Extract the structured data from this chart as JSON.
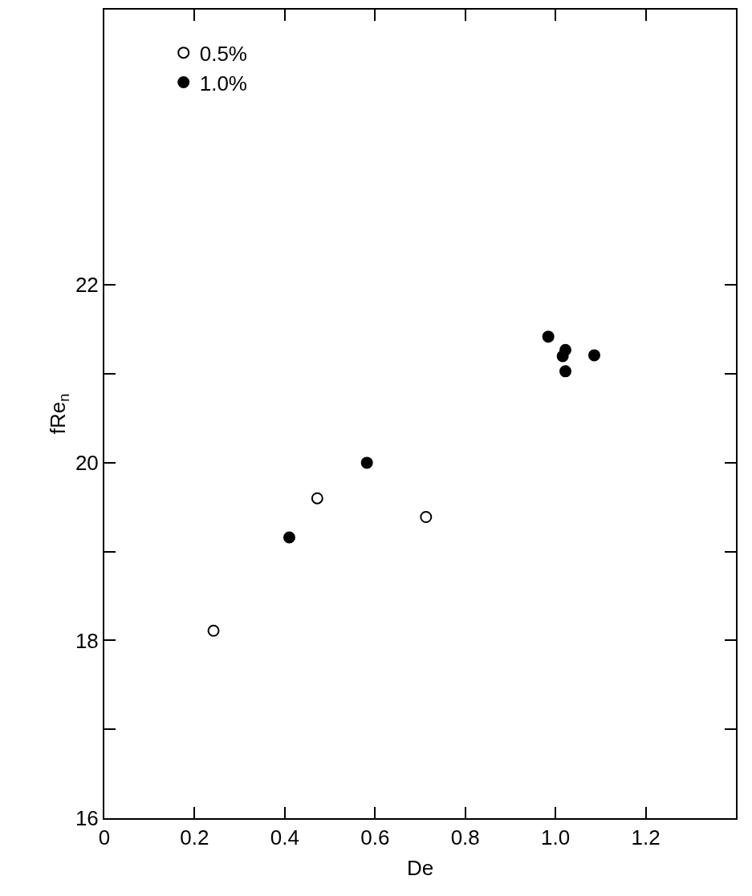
{
  "chart_data": {
    "type": "scatter",
    "xlabel": "De",
    "ylabel": "fRe$_{n}$",
    "xlim": [
      0,
      1.4
    ],
    "ylim": [
      16,
      25.1
    ],
    "xticks": [
      0,
      0.2,
      0.4,
      0.6,
      0.8,
      {
        "value": 1,
        "label": "1.0"
      },
      1.2
    ],
    "yticks": [
      16,
      {
        "value": 17,
        "label": null
      },
      18,
      {
        "value": 19,
        "label": null
      },
      20,
      {
        "value": 21,
        "label": null
      },
      22
    ],
    "legend": "top left",
    "marker": "circle",
    "series": [
      {
        "name": "0.5%",
        "color": "#000000",
        "x": [
          0.242,
          0.472,
          0.713
        ],
        "values": [
          18.11,
          19.6,
          19.39
        ]
      },
      {
        "name": "1.0%",
        "color": "#000000",
        "x": [
          0.41,
          0.582,
          0.984,
          1.022,
          1.016,
          1.022,
          1.086
        ],
        "values": [
          19.16,
          20.0,
          21.42,
          21.27,
          21.2,
          21.03,
          21.21
        ]
      }
    ]
  }
}
